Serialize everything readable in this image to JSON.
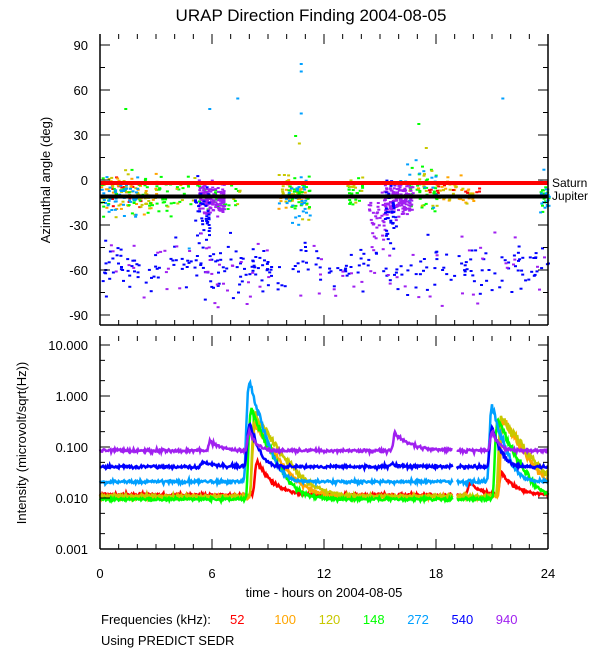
{
  "chart_data": [
    {
      "type": "scatter",
      "title": "URAP Direction Finding  2004-08-05",
      "ylabel": "Azimuthal angle (deg)",
      "ylim": [
        -90,
        90
      ],
      "xlim": [
        0,
        24
      ],
      "yticks": [
        "90",
        "60",
        "30",
        "0",
        "-30",
        "-60",
        "-90"
      ],
      "reference_lines": [
        {
          "name": "Saturn",
          "value": -2,
          "color": "#ff0000"
        },
        {
          "name": "Jupiter",
          "value": -11,
          "color": "#000000"
        }
      ],
      "clusters": [
        {
          "series": "52",
          "t": [
            0,
            2.5
          ],
          "center": -9,
          "spread": 5,
          "n": 25
        },
        {
          "series": "100",
          "t": [
            0,
            3
          ],
          "center": -9,
          "spread": 6,
          "n": 40
        },
        {
          "series": "120",
          "t": [
            0,
            3
          ],
          "center": -8,
          "spread": 7,
          "n": 45
        },
        {
          "series": "148",
          "t": [
            0,
            3.5
          ],
          "center": -9,
          "spread": 7,
          "n": 50
        },
        {
          "series": "272",
          "t": [
            0,
            2
          ],
          "center": -10,
          "spread": 6,
          "n": 50
        },
        {
          "series": "148",
          "t": [
            3.5,
            7.5
          ],
          "center": -10,
          "spread": 6,
          "n": 40
        },
        {
          "series": "120",
          "t": [
            3.5,
            7.5
          ],
          "center": -8,
          "spread": 6,
          "n": 15
        },
        {
          "series": "100",
          "t": [
            9.5,
            11
          ],
          "center": -10,
          "spread": 4,
          "n": 35
        },
        {
          "series": "120",
          "t": [
            9.5,
            11.2
          ],
          "center": -8,
          "spread": 7,
          "n": 30
        },
        {
          "series": "148",
          "t": [
            10,
            11.2
          ],
          "center": -8,
          "spread": 6,
          "n": 35
        },
        {
          "series": "272",
          "t": [
            9.5,
            11.2
          ],
          "center": -12,
          "spread": 8,
          "n": 30
        },
        {
          "series": "148",
          "t": [
            13.2,
            14
          ],
          "center": -8,
          "spread": 5,
          "n": 20
        },
        {
          "series": "120",
          "t": [
            13.2,
            14
          ],
          "center": -6,
          "spread": 5,
          "n": 10
        },
        {
          "series": "148",
          "t": [
            16.5,
            18
          ],
          "center": -6,
          "spread": 7,
          "n": 40
        },
        {
          "series": "100",
          "t": [
            16.5,
            20
          ],
          "center": -8,
          "spread": 5,
          "n": 30
        },
        {
          "series": "120",
          "t": [
            17,
            20
          ],
          "center": -8,
          "spread": 6,
          "n": 30
        },
        {
          "series": "52",
          "t": [
            17.5,
            20.5
          ],
          "center": -6,
          "spread": 4,
          "n": 15
        },
        {
          "series": "272",
          "t": [
            16,
            18
          ],
          "center": -6,
          "spread": 8,
          "n": 20
        },
        {
          "series": "148",
          "t": [
            23.5,
            24
          ],
          "center": -8,
          "spread": 6,
          "n": 15
        },
        {
          "series": "272",
          "t": [
            23.5,
            24
          ],
          "center": -10,
          "spread": 7,
          "n": 20
        },
        {
          "series": "940",
          "t": [
            5.2,
            6.6
          ],
          "center": -12,
          "spread": 5,
          "n": 160
        },
        {
          "series": "940",
          "t": [
            15.2,
            16.7
          ],
          "center": -12,
          "spread": 5,
          "n": 160
        },
        {
          "series": "940",
          "t": [
            14.3,
            15.2
          ],
          "center": -25,
          "spread": 12,
          "n": 40
        },
        {
          "series": "540",
          "t": [
            5,
            5.8
          ],
          "center": -20,
          "spread": 12,
          "n": 40
        },
        {
          "series": "540",
          "t": [
            15.2,
            15.8
          ],
          "center": -20,
          "spread": 12,
          "n": 40
        },
        {
          "series": "540",
          "t": [
            0,
            24
          ],
          "center": -58,
          "spread": 8,
          "n": 260
        },
        {
          "series": "940",
          "t": [
            0,
            24
          ],
          "center": -55,
          "spread": 12,
          "n": 80
        }
      ],
      "outliers": [
        {
          "series": "148",
          "t": 1.3,
          "v": 48
        },
        {
          "series": "272",
          "t": 5.8,
          "v": 48
        },
        {
          "series": "272",
          "t": 7.3,
          "v": 55
        },
        {
          "series": "272",
          "t": 10.7,
          "v": 78
        },
        {
          "series": "272",
          "t": 10.7,
          "v": 73
        },
        {
          "series": "272",
          "t": 10.7,
          "v": 45
        },
        {
          "series": "148",
          "t": 10.4,
          "v": 30
        },
        {
          "series": "120",
          "t": 10.6,
          "v": 25
        },
        {
          "series": "148",
          "t": 17,
          "v": 38
        },
        {
          "series": "120",
          "t": 17.4,
          "v": 22
        },
        {
          "series": "272",
          "t": 21.5,
          "v": 55
        },
        {
          "series": "272",
          "t": 4.7,
          "v": -45
        },
        {
          "series": "940",
          "t": 7.8,
          "v": -82
        },
        {
          "series": "540",
          "t": 16.4,
          "v": -76
        }
      ]
    },
    {
      "type": "line",
      "ylabel": "Intensity (microvolt/sqrt(Hz))",
      "xlabel": "time - hours on 2004-08-05",
      "yscale": "log",
      "ylim": [
        0.001,
        10
      ],
      "xlim": [
        0,
        24
      ],
      "yticks": [
        "10.000",
        "1.000",
        "0.100",
        "0.010",
        "0.001"
      ],
      "xticks": [
        "0",
        "6",
        "12",
        "18",
        "24"
      ],
      "data_gap": [
        18.9,
        19.1
      ],
      "series": [
        {
          "name": "52",
          "baseline": 0.0115,
          "events": [
            {
              "t": 8.4,
              "peak": 0.05,
              "decay": 0.6
            },
            {
              "t": 19.8,
              "peak": 0.02,
              "decay": 0.5
            },
            {
              "t": 21.5,
              "peak": 0.03,
              "decay": 0.6
            }
          ]
        },
        {
          "name": "100",
          "baseline": 0.0105,
          "events": [
            {
              "t": 8.3,
              "peak": 0.3,
              "decay": 0.7
            },
            {
              "t": 21.6,
              "peak": 0.35,
              "decay": 0.7
            }
          ]
        },
        {
          "name": "120",
          "baseline": 0.0108,
          "events": [
            {
              "t": 8.3,
              "peak": 0.45,
              "decay": 0.75
            },
            {
              "t": 21.5,
              "peak": 0.4,
              "decay": 0.8
            }
          ]
        },
        {
          "name": "148",
          "baseline": 0.0095,
          "events": [
            {
              "t": 8.1,
              "peak": 0.5,
              "decay": 0.55
            },
            {
              "t": 21.3,
              "peak": 0.35,
              "decay": 0.55
            }
          ]
        },
        {
          "name": "272",
          "baseline": 0.021,
          "events": [
            {
              "t": 8.0,
              "peak": 1.8,
              "decay": 0.35
            },
            {
              "t": 21.0,
              "peak": 0.6,
              "decay": 0.35
            }
          ]
        },
        {
          "name": "540",
          "baseline": 0.041,
          "events": [
            {
              "t": 5.5,
              "peak": 0.05,
              "decay": 0.8
            },
            {
              "t": 8.0,
              "peak": 0.3,
              "decay": 0.3
            },
            {
              "t": 15.6,
              "peak": 0.046,
              "decay": 0.6
            },
            {
              "t": 21.0,
              "peak": 0.25,
              "decay": 0.3
            }
          ]
        },
        {
          "name": "940",
          "baseline": 0.085,
          "events": [
            {
              "t": 5.9,
              "peak": 0.13,
              "decay": 0.5
            },
            {
              "t": 8.0,
              "peak": 0.2,
              "decay": 0.3
            },
            {
              "t": 15.8,
              "peak": 0.18,
              "decay": 0.7
            },
            {
              "t": 21.0,
              "peak": 0.2,
              "decay": 0.3
            }
          ]
        }
      ]
    }
  ],
  "legend": {
    "label": "Frequencies (kHz):",
    "items": [
      {
        "name": "52",
        "color": "#ff0000"
      },
      {
        "name": "100",
        "color": "#ffa500"
      },
      {
        "name": "120",
        "color": "#c8c800"
      },
      {
        "name": "148",
        "color": "#00ff00"
      },
      {
        "name": "272",
        "color": "#00a0ff"
      },
      {
        "name": "540",
        "color": "#0000ff"
      },
      {
        "name": "940",
        "color": "#a020f0"
      }
    ]
  },
  "footnote": "Using PREDICT SEDR"
}
